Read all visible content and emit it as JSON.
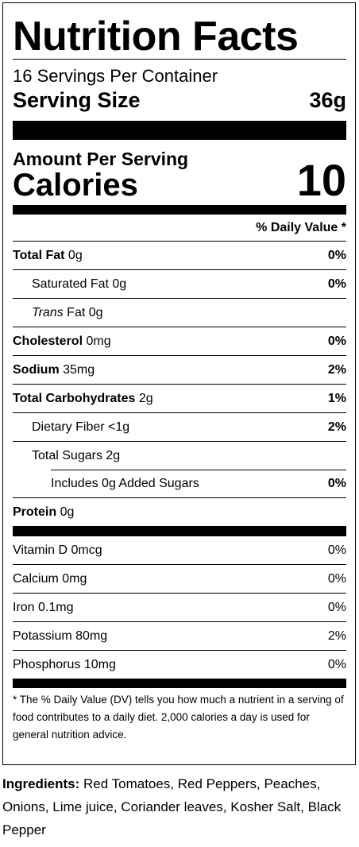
{
  "label": {
    "title": "Nutrition Facts",
    "servings_per_container": "16 Servings Per Container",
    "serving_size_label": "Serving Size",
    "serving_size_value": "36g",
    "amount_per_serving": "Amount Per Serving",
    "calories_label": "Calories",
    "calories_value": "10",
    "dv_header": "% Daily Value *",
    "nutrients": [
      {
        "name": "Total Fat",
        "amount": " 0g",
        "dv": "0%"
      },
      {
        "name": "Saturated Fat 0g",
        "dv": "0%"
      },
      {
        "name": "Trans",
        "amount": " Fat 0g",
        "dv": ""
      },
      {
        "name": "Cholesterol",
        "amount": " 0mg",
        "dv": "0%"
      },
      {
        "name": "Sodium",
        "amount": " 35mg",
        "dv": "2%"
      },
      {
        "name": "Total Carbohydrates",
        "amount": " 2g",
        "dv": "1%"
      },
      {
        "name": "Dietary Fiber <1g",
        "dv": "2%"
      },
      {
        "name": "Total Sugars 2g",
        "dv": ""
      },
      {
        "name": "Includes 0g Added Sugars",
        "dv": "0%"
      },
      {
        "name": "Protein",
        "amount": " 0g",
        "dv": ""
      }
    ],
    "vitamins": [
      {
        "name": "Vitamin D 0mcg",
        "dv": "0%"
      },
      {
        "name": "Calcium 0mg",
        "dv": "0%"
      },
      {
        "name": "Iron 0.1mg",
        "dv": "0%"
      },
      {
        "name": "Potassium 80mg",
        "dv": "2%"
      },
      {
        "name": "Phosphorus 10mg",
        "dv": "0%"
      }
    ],
    "footnote": "* The % Daily Value (DV) tells you how much a nutrient in a serving of food contributes to a daily diet. 2,000 calories a day is used for general nutrition advice."
  },
  "ingredients": {
    "label": "Ingredients:",
    "text": " Red Tomatoes, Red Peppers, Peaches, Onions, Lime juice, Coriander leaves, Kosher Salt, Black Pepper"
  }
}
